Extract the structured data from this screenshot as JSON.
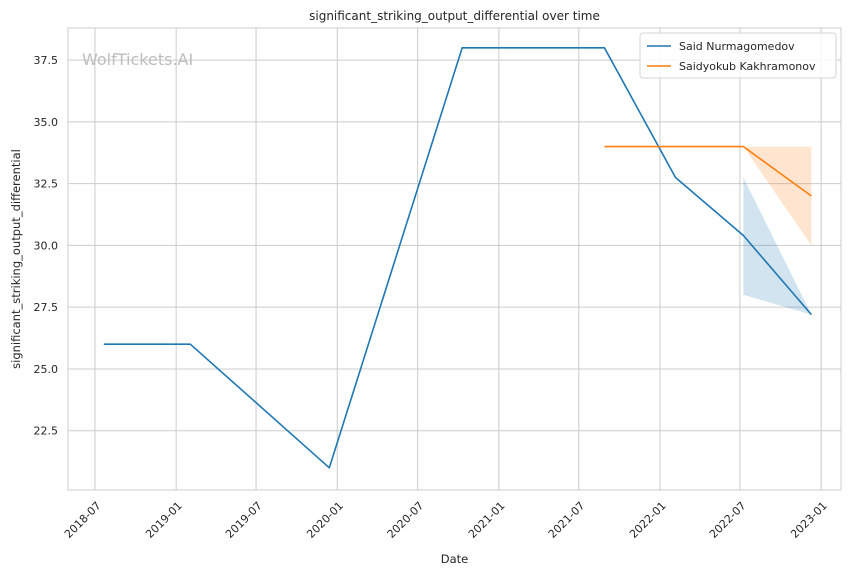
{
  "chart_data": {
    "type": "line",
    "title": "significant_striking_output_differential over time",
    "xlabel": "Date",
    "ylabel": "significant_striking_output_differential",
    "watermark": "WolfTickets.AI",
    "x_ticks": [
      "2018-07",
      "2019-01",
      "2019-07",
      "2020-01",
      "2020-07",
      "2021-01",
      "2021-07",
      "2022-01",
      "2022-07",
      "2023-01"
    ],
    "y_ticks": [
      22.5,
      25.0,
      27.5,
      30.0,
      32.5,
      35.0,
      37.5
    ],
    "xlim": [
      "2018-05-01",
      "2023-02-15"
    ],
    "ylim": [
      20.1,
      38.8
    ],
    "grid": true,
    "legend_position": "top-right",
    "series": [
      {
        "name": "Said Nurmagomedov",
        "color": "#1f77b4",
        "points": [
          {
            "x": "2018-07-21",
            "y": 26.0
          },
          {
            "x": "2019-02-02",
            "y": 26.0
          },
          {
            "x": "2019-12-14",
            "y": 21.0
          },
          {
            "x": "2020-10-10",
            "y": 38.0
          },
          {
            "x": "2021-08-28",
            "y": 38.0
          },
          {
            "x": "2022-02-05",
            "y": 32.75
          },
          {
            "x": "2022-07-09",
            "y": 30.4
          },
          {
            "x": "2022-12-10",
            "y": 27.2
          }
        ],
        "band": [
          {
            "x": "2022-07-09",
            "low": 28.0,
            "high": 32.75
          },
          {
            "x": "2022-12-10",
            "low": 27.2,
            "high": 27.2
          }
        ]
      },
      {
        "name": "Saidyokub Kakhramonov",
        "color": "#ff7f0e",
        "points": [
          {
            "x": "2021-08-28",
            "y": 34.0
          },
          {
            "x": "2022-07-09",
            "y": 34.0
          },
          {
            "x": "2022-12-10",
            "y": 32.0
          }
        ],
        "band": [
          {
            "x": "2022-07-09",
            "low": 34.0,
            "high": 34.0
          },
          {
            "x": "2022-12-10",
            "low": 30.0,
            "high": 34.0
          }
        ]
      }
    ]
  }
}
